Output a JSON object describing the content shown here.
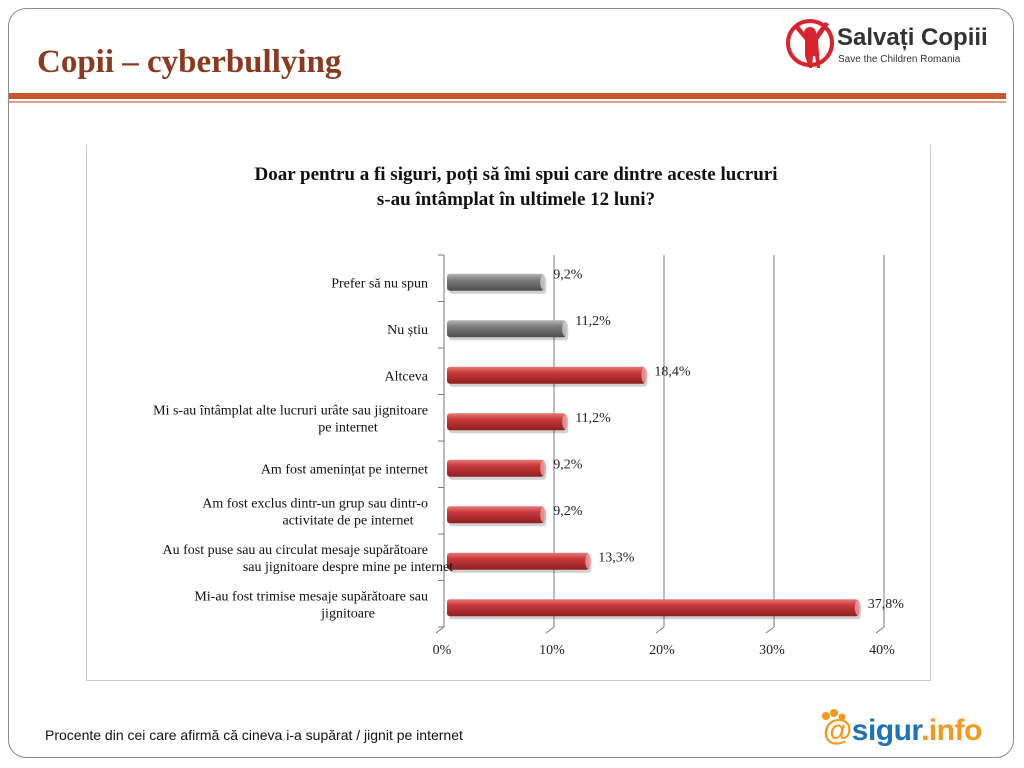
{
  "slide": {
    "title": "Copii – cyberbullying",
    "footer_note": "Procente din cei care afirmă că cineva i-a supărat / jignit pe internet"
  },
  "logos": {
    "save_children": {
      "name": "Salvați Copiii",
      "subtitle": "Save the Children Romania",
      "icon": "child-figure-icon",
      "color": "#d9232e"
    },
    "sigur": {
      "at": "@",
      "main": "sigur",
      "suffix": ".info",
      "icon": "paw-icon"
    }
  },
  "colors": {
    "accent": "#c9542a",
    "title_text": "#8b3a1f",
    "bar_red": "#c8393b",
    "bar_gray": "#7f7f7f",
    "sigur_orange": "#f39a1e",
    "sigur_blue": "#1f74b8"
  },
  "chart_data": {
    "type": "bar",
    "orientation": "horizontal",
    "title": "Doar pentru a fi siguri, poți să îmi spui care dintre aceste lucruri s-au întâmplat în ultimele 12 luni?",
    "title_lines": [
      "Doar pentru a fi siguri, poți să îmi spui care dintre aceste lucruri",
      "s-au întâmplat în ultimele 12 luni?"
    ],
    "xlim": [
      0,
      40
    ],
    "x_ticks": [
      0,
      10,
      20,
      30,
      40
    ],
    "x_tick_labels": [
      "0%",
      "10%",
      "20%",
      "30%",
      "40%"
    ],
    "grid": true,
    "categories": [
      {
        "lines": [
          "Prefer să nu spun"
        ],
        "value": 9.2,
        "label": "9,2%",
        "color": "gray"
      },
      {
        "lines": [
          "Nu știu"
        ],
        "value": 11.2,
        "label": "11,2%",
        "color": "gray"
      },
      {
        "lines": [
          "Altceva"
        ],
        "value": 18.4,
        "label": "18,4%",
        "color": "red"
      },
      {
        "lines": [
          "Mi s-au întâmplat alte lucruri urâte sau jignitoare",
          "pe internet"
        ],
        "value": 11.2,
        "label": "11,2%",
        "color": "red"
      },
      {
        "lines": [
          "Am fost amenințat pe internet"
        ],
        "value": 9.2,
        "label": "9,2%",
        "color": "red"
      },
      {
        "lines": [
          "Am fost exclus dintr-un grup sau dintr-o",
          "activitate de pe internet"
        ],
        "value": 9.2,
        "label": "9,2%",
        "color": "red"
      },
      {
        "lines": [
          "Au fost puse sau au circulat mesaje supărătoare",
          "sau jignitoare despre mine pe internet"
        ],
        "value": 13.3,
        "label": "13,3%",
        "color": "red"
      },
      {
        "lines": [
          "Mi-au fost trimise mesaje supărătoare sau",
          "jignitoare"
        ],
        "value": 37.8,
        "label": "37,8%",
        "color": "red"
      }
    ]
  }
}
